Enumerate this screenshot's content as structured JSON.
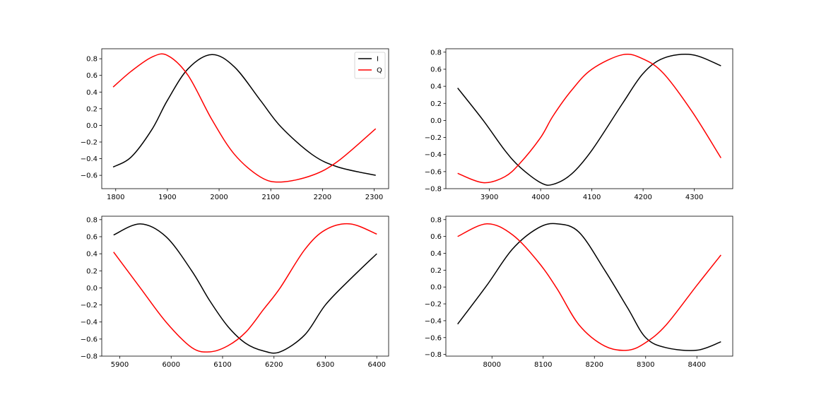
{
  "chart_data": [
    {
      "type": "line",
      "title": "",
      "xlabel": "",
      "ylabel": "",
      "xlim": [
        1773,
        2328
      ],
      "ylim": [
        -0.76,
        0.92
      ],
      "xticks": [
        1800,
        1900,
        2000,
        2100,
        2200,
        2300
      ],
      "yticks": [
        -0.6,
        -0.4,
        -0.2,
        0.0,
        0.2,
        0.4,
        0.6,
        0.8
      ],
      "grid": false,
      "legend": {
        "show": true,
        "position": "top-right"
      },
      "x": [
        1795,
        1830,
        1870,
        1900,
        1940,
        1986,
        2030,
        2080,
        2120,
        2180,
        2230,
        2303
      ],
      "series": [
        {
          "name": "I",
          "color": "#000000",
          "values": [
            -0.5,
            -0.38,
            -0.05,
            0.3,
            0.68,
            0.85,
            0.7,
            0.3,
            -0.02,
            -0.35,
            -0.5,
            -0.6
          ]
        },
        {
          "name": "Q",
          "color": "#ff0000",
          "values": [
            0.46,
            0.65,
            0.82,
            0.84,
            0.6,
            0.07,
            -0.35,
            -0.62,
            -0.68,
            -0.6,
            -0.43,
            -0.04
          ]
        }
      ]
    },
    {
      "type": "line",
      "title": "",
      "xlabel": "",
      "ylabel": "",
      "xlim": [
        3815,
        4375
      ],
      "ylim": [
        -0.8,
        0.84
      ],
      "xticks": [
        3900,
        4000,
        4100,
        4200,
        4300
      ],
      "yticks": [
        -0.8,
        -0.6,
        -0.4,
        -0.2,
        0.0,
        0.2,
        0.4,
        0.6,
        0.8
      ],
      "grid": false,
      "legend": {
        "show": false,
        "position": ""
      },
      "x": [
        3838,
        3888,
        3930,
        3960,
        4000,
        4024,
        4060,
        4100,
        4160,
        4200,
        4240,
        4296,
        4352
      ],
      "series": [
        {
          "name": "I",
          "color": "#000000",
          "values": [
            0.38,
            0.0,
            -0.35,
            -0.55,
            -0.73,
            -0.75,
            -0.63,
            -0.35,
            0.2,
            0.55,
            0.73,
            0.77,
            0.64
          ]
        },
        {
          "name": "Q",
          "color": "#ff0000",
          "values": [
            -0.62,
            -0.73,
            -0.66,
            -0.5,
            -0.2,
            0.05,
            0.35,
            0.6,
            0.77,
            0.72,
            0.55,
            0.1,
            -0.44
          ]
        }
      ]
    },
    {
      "type": "line",
      "title": "",
      "xlabel": "",
      "ylabel": "",
      "xlim": [
        5865,
        6423
      ],
      "ylim": [
        -0.8,
        0.84
      ],
      "xticks": [
        5900,
        6000,
        6100,
        6200,
        6300,
        6400
      ],
      "yticks": [
        -0.8,
        -0.6,
        -0.4,
        -0.2,
        0.0,
        0.2,
        0.4,
        0.6,
        0.8
      ],
      "grid": false,
      "legend": {
        "show": false,
        "position": ""
      },
      "x": [
        5888,
        5940,
        5990,
        6040,
        6075,
        6110,
        6145,
        6180,
        6212,
        6260,
        6300,
        6348,
        6400
      ],
      "series": [
        {
          "name": "I",
          "color": "#000000",
          "values": [
            0.62,
            0.75,
            0.6,
            0.2,
            -0.15,
            -0.45,
            -0.65,
            -0.74,
            -0.75,
            -0.55,
            -0.2,
            0.1,
            0.4
          ]
        },
        {
          "name": "Q",
          "color": "#ff0000",
          "values": [
            0.42,
            0.0,
            -0.4,
            -0.7,
            -0.75,
            -0.68,
            -0.52,
            -0.25,
            0.0,
            0.45,
            0.68,
            0.75,
            0.63
          ]
        }
      ]
    },
    {
      "type": "line",
      "title": "",
      "xlabel": "",
      "ylabel": "",
      "xlim": [
        7910,
        8470
      ],
      "ylim": [
        -0.82,
        0.84
      ],
      "xticks": [
        8000,
        8100,
        8200,
        8300,
        8400
      ],
      "yticks": [
        -0.8,
        -0.6,
        -0.4,
        -0.2,
        0.0,
        0.2,
        0.4,
        0.6,
        0.8
      ],
      "grid": false,
      "legend": {
        "show": false,
        "position": ""
      },
      "x": [
        7933,
        7990,
        8040,
        8090,
        8127,
        8170,
        8220,
        8265,
        8300,
        8340,
        8400,
        8447
      ],
      "series": [
        {
          "name": "I",
          "color": "#000000",
          "values": [
            -0.44,
            0.02,
            0.45,
            0.7,
            0.75,
            0.65,
            0.2,
            -0.25,
            -0.6,
            -0.72,
            -0.75,
            -0.65
          ]
        },
        {
          "name": "Q",
          "color": "#ff0000",
          "values": [
            0.6,
            0.75,
            0.62,
            0.3,
            -0.02,
            -0.45,
            -0.7,
            -0.75,
            -0.66,
            -0.45,
            0.02,
            0.38
          ]
        }
      ]
    }
  ]
}
